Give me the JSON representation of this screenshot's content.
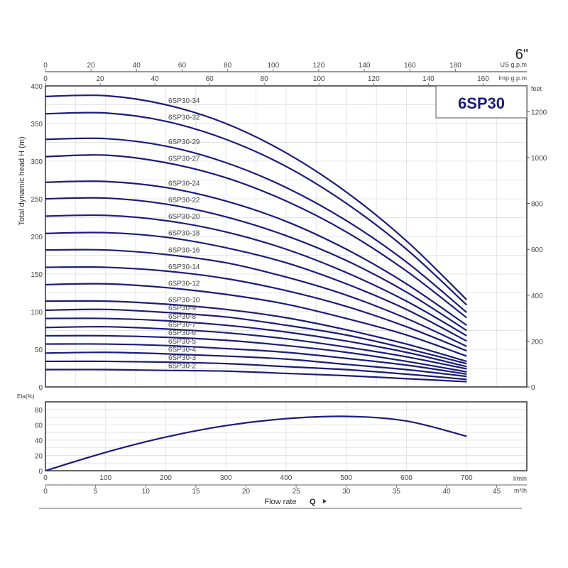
{
  "chart_data": [
    {
      "type": "line",
      "title": "6SP30",
      "corner_label": "6\"",
      "ylabel": "Total dynamic head H (m)",
      "ylim": [
        0,
        400
      ],
      "yticks": [
        0,
        50,
        100,
        150,
        200,
        250,
        300,
        350,
        400
      ],
      "y2_unit": "feet",
      "y2ticks": [
        0,
        200,
        400,
        600,
        800,
        1000,
        1200
      ],
      "x_unit": "l/min",
      "xlim": [
        0,
        800
      ],
      "x": [
        0,
        100,
        200,
        300,
        400,
        500,
        600,
        700
      ],
      "top_axes": [
        {
          "unit": "US g.p.m",
          "ticks": [
            0,
            20,
            40,
            60,
            80,
            100,
            120,
            140,
            160,
            180
          ]
        },
        {
          "unit": "Imp g.p.m",
          "ticks": [
            0,
            20,
            40,
            60,
            80,
            100,
            120,
            140,
            160
          ]
        }
      ],
      "line_color": "#1c1c7a",
      "grid": true,
      "series": [
        {
          "name": "6SP30-34",
          "values": [
            386,
            387,
            375,
            350,
            311,
            259,
            194,
            116
          ]
        },
        {
          "name": "6SP30-32",
          "values": [
            363,
            364,
            353,
            329,
            293,
            244,
            183,
            109
          ]
        },
        {
          "name": "6SP30-29",
          "values": [
            329,
            330,
            320,
            298,
            265,
            221,
            166,
            99
          ]
        },
        {
          "name": "6SP30-27",
          "values": [
            306,
            308,
            298,
            278,
            247,
            206,
            154,
            92
          ]
        },
        {
          "name": "6SP30-24",
          "values": [
            272,
            273,
            265,
            247,
            220,
            183,
            137,
            82
          ]
        },
        {
          "name": "6SP30-22",
          "values": [
            250,
            251,
            243,
            226,
            201,
            168,
            126,
            75
          ]
        },
        {
          "name": "6SP30-20",
          "values": [
            227,
            228,
            221,
            206,
            183,
            152,
            114,
            68
          ]
        },
        {
          "name": "6SP30-18",
          "values": [
            204,
            205,
            199,
            185,
            165,
            137,
            103,
            61
          ]
        },
        {
          "name": "6SP30-16",
          "values": [
            182,
            182,
            176,
            165,
            146,
            122,
            91,
            54
          ]
        },
        {
          "name": "6SP30-14",
          "values": [
            159,
            159,
            154,
            144,
            128,
            107,
            80,
            48
          ]
        },
        {
          "name": "6SP30-12",
          "values": [
            136,
            137,
            132,
            123,
            110,
            91,
            69,
            41
          ]
        },
        {
          "name": "6SP30-10",
          "values": [
            114,
            114,
            110,
            103,
            92,
            76,
            57,
            34
          ]
        },
        {
          "name": "6SP30-9",
          "values": [
            102,
            103,
            99,
            93,
            82,
            69,
            51,
            31
          ]
        },
        {
          "name": "6SP30-8",
          "values": [
            91,
            91,
            88,
            82,
            73,
            61,
            46,
            27
          ]
        },
        {
          "name": "6SP30-7",
          "values": [
            79,
            80,
            77,
            72,
            64,
            53,
            40,
            24
          ]
        },
        {
          "name": "6SP30-6",
          "values": [
            68,
            68,
            66,
            62,
            55,
            46,
            34,
            20
          ]
        },
        {
          "name": "6SP30-5",
          "values": [
            57,
            57,
            55,
            51,
            46,
            38,
            29,
            17
          ]
        },
        {
          "name": "6SP30-4",
          "values": [
            45,
            46,
            44,
            41,
            37,
            30,
            23,
            14
          ]
        },
        {
          "name": "6SP30-3",
          "values": [
            34,
            34,
            33,
            31,
            27,
            23,
            17,
            10
          ]
        },
        {
          "name": "6SP30-2",
          "values": [
            23,
            23,
            22,
            21,
            18,
            15,
            11,
            7
          ]
        }
      ]
    },
    {
      "type": "line",
      "ylabel": "Eta(%)",
      "ylim": [
        0,
        90
      ],
      "yticks": [
        0,
        20,
        40,
        60,
        80
      ],
      "x": [
        0,
        100,
        200,
        300,
        400,
        500,
        600,
        700
      ],
      "values": [
        0,
        24,
        44,
        59,
        68,
        71,
        65,
        45
      ],
      "xlim": [
        0,
        800
      ],
      "xticks": [
        0,
        100,
        200,
        300,
        400,
        500,
        600,
        700
      ],
      "x_unit": "l/min",
      "x2_unit": "m³/h",
      "x2ticks": [
        0,
        5,
        10,
        15,
        20,
        25,
        30,
        35,
        40,
        45
      ],
      "xlabel": "Flow rate",
      "xlabel_symbol": "Q",
      "grid": true
    }
  ]
}
